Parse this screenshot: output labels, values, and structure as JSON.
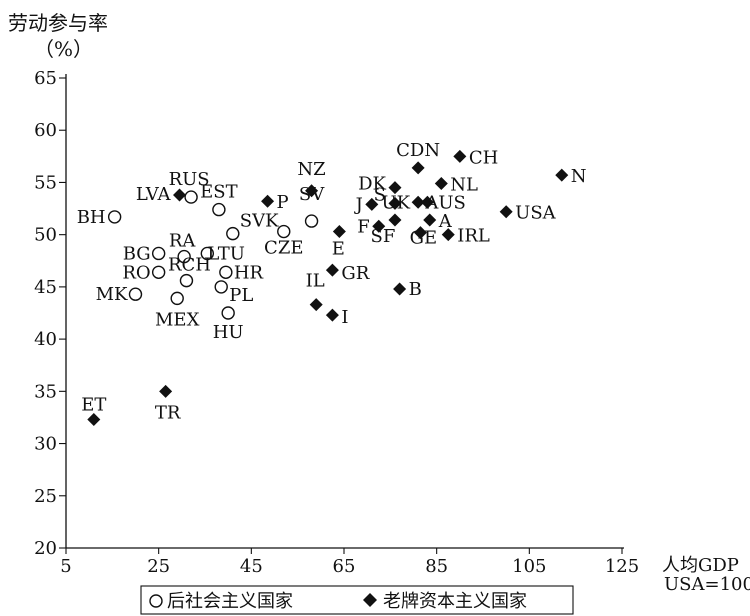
{
  "chart_data": {
    "type": "scatter",
    "ylabel": "劳动参与率",
    "ylabel_unit": "（%）",
    "xlabel": "人均GDP",
    "xlabel_note": "USA=100",
    "xlim": [
      5,
      125
    ],
    "ylim": [
      20,
      65
    ],
    "x_ticks": [
      5,
      25,
      45,
      65,
      85,
      105,
      125
    ],
    "y_ticks": [
      20,
      25,
      30,
      35,
      40,
      45,
      50,
      55,
      60,
      65
    ],
    "x_tick_labels": [
      "5",
      "25",
      "45",
      "65",
      "85",
      "105",
      "125"
    ],
    "y_tick_labels": [
      "20",
      "25",
      "30",
      "35",
      "40",
      "45",
      "50",
      "55",
      "60",
      "65"
    ],
    "grid": false,
    "legend_position": "bottom",
    "series": [
      {
        "name": "后社会主义国家",
        "marker": "open-circle",
        "points": [
          {
            "label": "RUS",
            "x": 32,
            "y": 53.6
          },
          {
            "label": "EST",
            "x": 38,
            "y": 52.4
          },
          {
            "label": "BH",
            "x": 15.5,
            "y": 51.7
          },
          {
            "label": "SVK",
            "x": 41,
            "y": 50.1
          },
          {
            "label": "CZE",
            "x": 52,
            "y": 50.3
          },
          {
            "label": "SV",
            "x": 58,
            "y": 51.3
          },
          {
            "label": "BG",
            "x": 25,
            "y": 48.2
          },
          {
            "label": "RA",
            "x": 30.5,
            "y": 47.9
          },
          {
            "label": "LTU",
            "x": 35.5,
            "y": 48.2
          },
          {
            "label": "RO",
            "x": 25,
            "y": 46.4
          },
          {
            "label": "RCH",
            "x": 31,
            "y": 45.6
          },
          {
            "label": "HR",
            "x": 39.5,
            "y": 46.4
          },
          {
            "label": "MK",
            "x": 20,
            "y": 44.3
          },
          {
            "label": "PL",
            "x": 38.5,
            "y": 45.0
          },
          {
            "label": "MEX",
            "x": 29,
            "y": 43.9
          },
          {
            "label": "HU",
            "x": 40,
            "y": 42.5
          }
        ]
      },
      {
        "name": "老牌资本主义国家",
        "marker": "filled-diamond",
        "points": [
          {
            "label": "LVA",
            "x": 29.5,
            "y": 53.8
          },
          {
            "label": "P",
            "x": 48.5,
            "y": 53.2
          },
          {
            "label": "NZ",
            "x": 58,
            "y": 54.2
          },
          {
            "label": "CDN",
            "x": 81,
            "y": 56.4
          },
          {
            "label": "CH",
            "x": 90,
            "y": 57.5
          },
          {
            "label": "DK",
            "x": 76,
            "y": 54.5
          },
          {
            "label": "NL",
            "x": 86,
            "y": 54.9
          },
          {
            "label": "N",
            "x": 112,
            "y": 55.7
          },
          {
            "label": "S",
            "x": 76,
            "y": 53.0
          },
          {
            "label": "J",
            "x": 71,
            "y": 52.9
          },
          {
            "label": "UK",
            "x": 81,
            "y": 53.1
          },
          {
            "label": "AUS",
            "x": 83,
            "y": 53.1
          },
          {
            "label": "USA",
            "x": 100,
            "y": 52.2
          },
          {
            "label": "A",
            "x": 83.5,
            "y": 51.4
          },
          {
            "label": "F",
            "x": 72.5,
            "y": 50.8
          },
          {
            "label": "SF",
            "x": 76,
            "y": 51.4
          },
          {
            "label": "E",
            "x": 64,
            "y": 50.3
          },
          {
            "label": "GE",
            "x": 81.5,
            "y": 50.2
          },
          {
            "label": "IRL",
            "x": 87.5,
            "y": 50.0
          },
          {
            "label": "GR",
            "x": 62.5,
            "y": 46.6
          },
          {
            "label": "IL",
            "x": 59,
            "y": 43.3
          },
          {
            "label": "I",
            "x": 62.5,
            "y": 42.3
          },
          {
            "label": "B",
            "x": 77,
            "y": 44.8
          },
          {
            "label": "TR",
            "x": 26.5,
            "y": 35.0
          },
          {
            "label": "ET",
            "x": 11,
            "y": 32.3
          }
        ]
      }
    ]
  }
}
